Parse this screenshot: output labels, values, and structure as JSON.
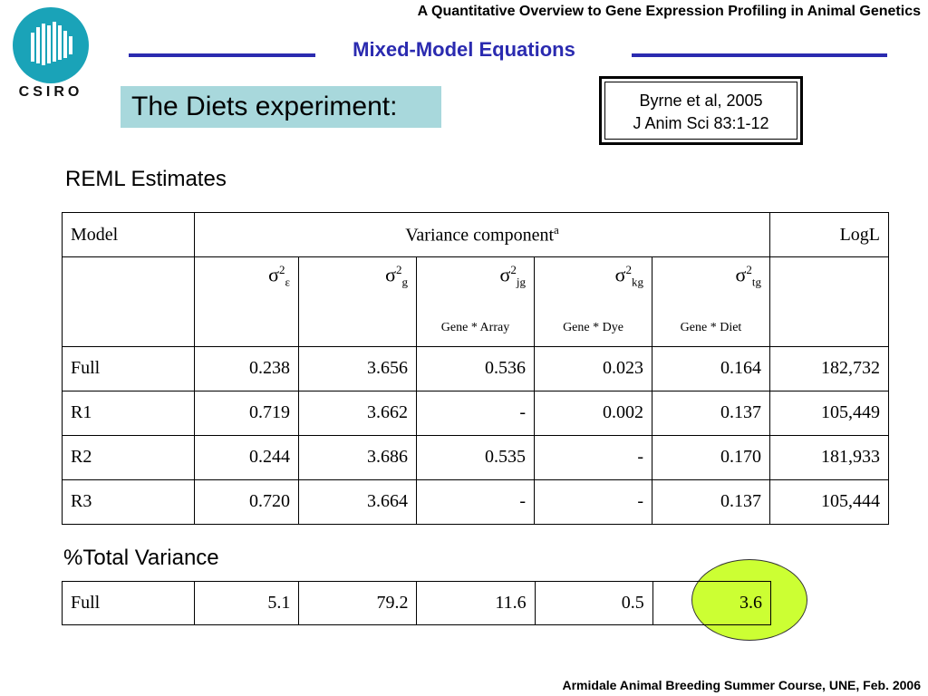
{
  "header": {
    "course_title": "A Quantitative Overview to Gene Expression Profiling in Animal Genetics",
    "section_title": "Mixed-Model Equations",
    "logo_text": "CSIRO"
  },
  "slide": {
    "heading": "The Diets experiment:",
    "reference_line1": "Byrne et al, 2005",
    "reference_line2": "J Anim Sci 83:1-12",
    "reml_label": "REML Estimates",
    "total_variance_label": "%Total Variance"
  },
  "reml_table": {
    "header_model": "Model",
    "header_variance": "Variance component",
    "header_variance_sup": "a",
    "header_logl": "LogL",
    "components": [
      {
        "symbol": "σ",
        "power": "2",
        "sub": "ε",
        "label": ""
      },
      {
        "symbol": "σ",
        "power": "2",
        "sub": "g",
        "label": ""
      },
      {
        "symbol": "σ",
        "power": "2",
        "sub": "jg",
        "label": "Gene * Array"
      },
      {
        "symbol": "σ",
        "power": "2",
        "sub": "kg",
        "label": "Gene * Dye"
      },
      {
        "symbol": "σ",
        "power": "2",
        "sub": "tg",
        "label": "Gene * Diet"
      }
    ],
    "rows": [
      {
        "model": "Full",
        "values": [
          "0.238",
          "3.656",
          "0.536",
          "0.023",
          "0.164"
        ],
        "logl": "182,732"
      },
      {
        "model": "R1",
        "values": [
          "0.719",
          "3.662",
          "-",
          "0.002",
          "0.137"
        ],
        "logl": "105,449"
      },
      {
        "model": "R2",
        "values": [
          "0.244",
          "3.686",
          "0.535",
          "-",
          "0.170"
        ],
        "logl": "181,933"
      },
      {
        "model": "R3",
        "values": [
          "0.720",
          "3.664",
          "-",
          "-",
          "0.137"
        ],
        "logl": "105,444"
      }
    ]
  },
  "pct_table": {
    "model": "Full",
    "values": [
      "5.1",
      "79.2",
      "11.6",
      "0.5",
      "3.6"
    ]
  },
  "footer": {
    "text": "Armidale Animal Breeding Summer Course, UNE, Feb. 2006"
  },
  "colors": {
    "accent": "#2b2bb0",
    "heading_bg": "#a8d8dc",
    "highlight": "#ccff33",
    "logo_teal": "#1aa3b8"
  }
}
